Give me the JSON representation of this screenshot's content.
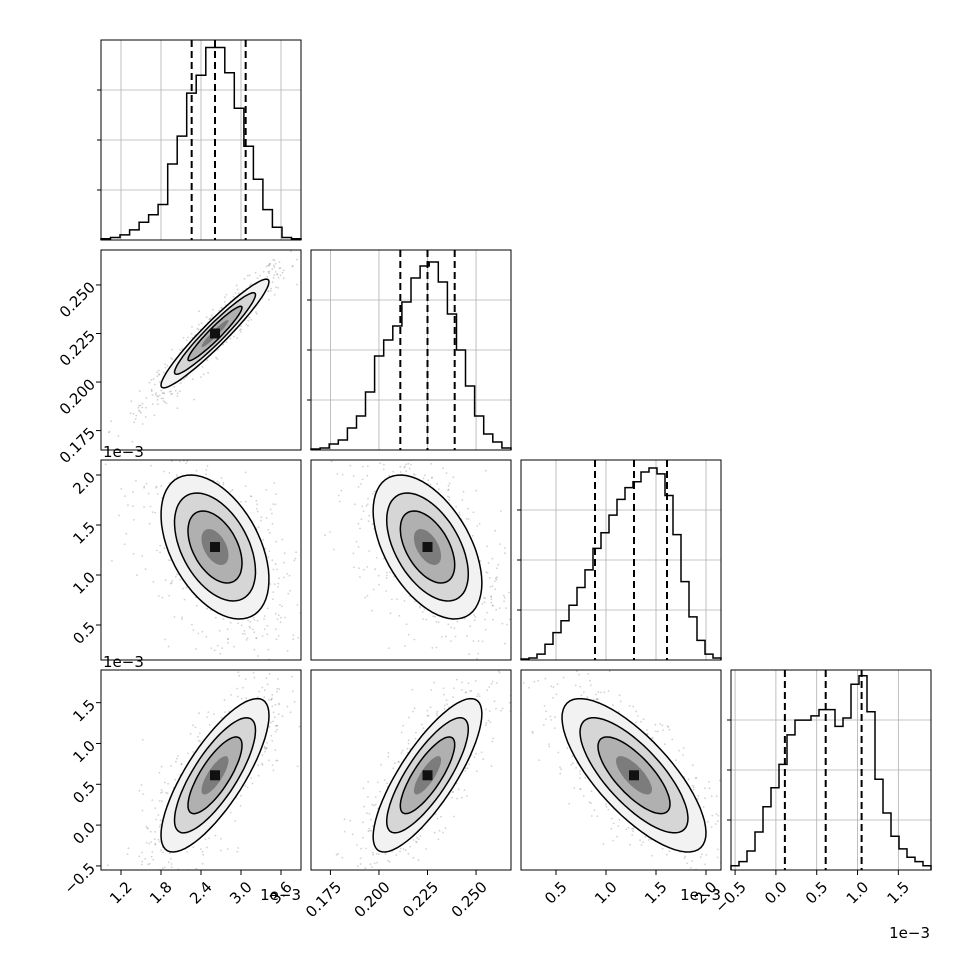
{
  "chart_data": {
    "type": "corner",
    "grid": true,
    "dashed_quantiles": [
      0.16,
      0.5,
      0.84
    ],
    "colors": {
      "hist": "#000000",
      "scatter": "#7f7f7f",
      "grid": "#b0b0b0"
    },
    "params": [
      {
        "range": [
          0.0009,
          0.0039
        ],
        "ticks": [
          0.0012,
          0.0018,
          0.0024,
          0.003,
          0.0036
        ],
        "tick_labels": [
          "1.2",
          "1.8",
          "2.4",
          "3.0",
          "3.6"
        ],
        "multiplier": "1e−3",
        "quantiles": [
          0.00226,
          0.00261,
          0.00307
        ],
        "hist": [
          0.5,
          1,
          2,
          4,
          7,
          10,
          14,
          30,
          41,
          58,
          65,
          76,
          76,
          66,
          52,
          37,
          24,
          12,
          5,
          1,
          0.5
        ],
        "hist_ymax": 75
      },
      {
        "range": [
          0.165,
          0.268
        ],
        "ticks": [
          0.175,
          0.2,
          0.225,
          0.25
        ],
        "tick_labels": [
          "0.175",
          "0.200",
          "0.225",
          "0.250"
        ],
        "multiplier": "",
        "quantiles": [
          0.211,
          0.225,
          0.239
        ],
        "hist": [
          0.5,
          1,
          3,
          5,
          11,
          17,
          29,
          47,
          55,
          62,
          74,
          86,
          92,
          94,
          84,
          68,
          50,
          32,
          17,
          8,
          4,
          1
        ],
        "hist_ymax": 95
      },
      {
        "range": [
          0.00015,
          0.00215
        ],
        "ticks": [
          0.0005,
          0.001,
          0.0015,
          0.002
        ],
        "tick_labels": [
          "0.5",
          "1.0",
          "1.5",
          "2.0"
        ],
        "multiplier": "1e−3",
        "quantiles": [
          0.00089,
          0.00128,
          0.00161
        ],
        "hist": [
          0.5,
          1,
          3,
          8,
          14,
          20,
          28,
          37,
          46,
          57,
          65,
          74,
          82,
          88,
          91,
          96,
          98,
          95,
          84,
          64,
          40,
          22,
          10,
          3,
          1
        ],
        "hist_ymax": 97
      },
      {
        "range": [
          -0.00055,
          0.0019
        ],
        "ticks": [
          -0.0005,
          0.0,
          0.0005,
          0.001,
          0.0015
        ],
        "tick_labels": [
          "−0.5",
          "0.0",
          "0.5",
          "1.0",
          "1.5"
        ],
        "multiplier": "1e−3",
        "quantiles": [
          0.00011,
          0.00061,
          0.00105
        ],
        "hist": [
          2,
          4,
          9,
          18,
          30,
          39,
          50,
          64,
          71,
          71,
          73,
          76,
          76,
          68,
          72,
          88,
          92,
          75,
          43,
          27,
          16,
          10,
          6,
          4,
          2
        ],
        "hist_ymax": 90
      }
    ],
    "correlations": [
      [
        0.95,
        -0.45,
        0.78
      ],
      [
        -0.5,
        0.8
      ],
      [
        -0.75
      ]
    ]
  }
}
